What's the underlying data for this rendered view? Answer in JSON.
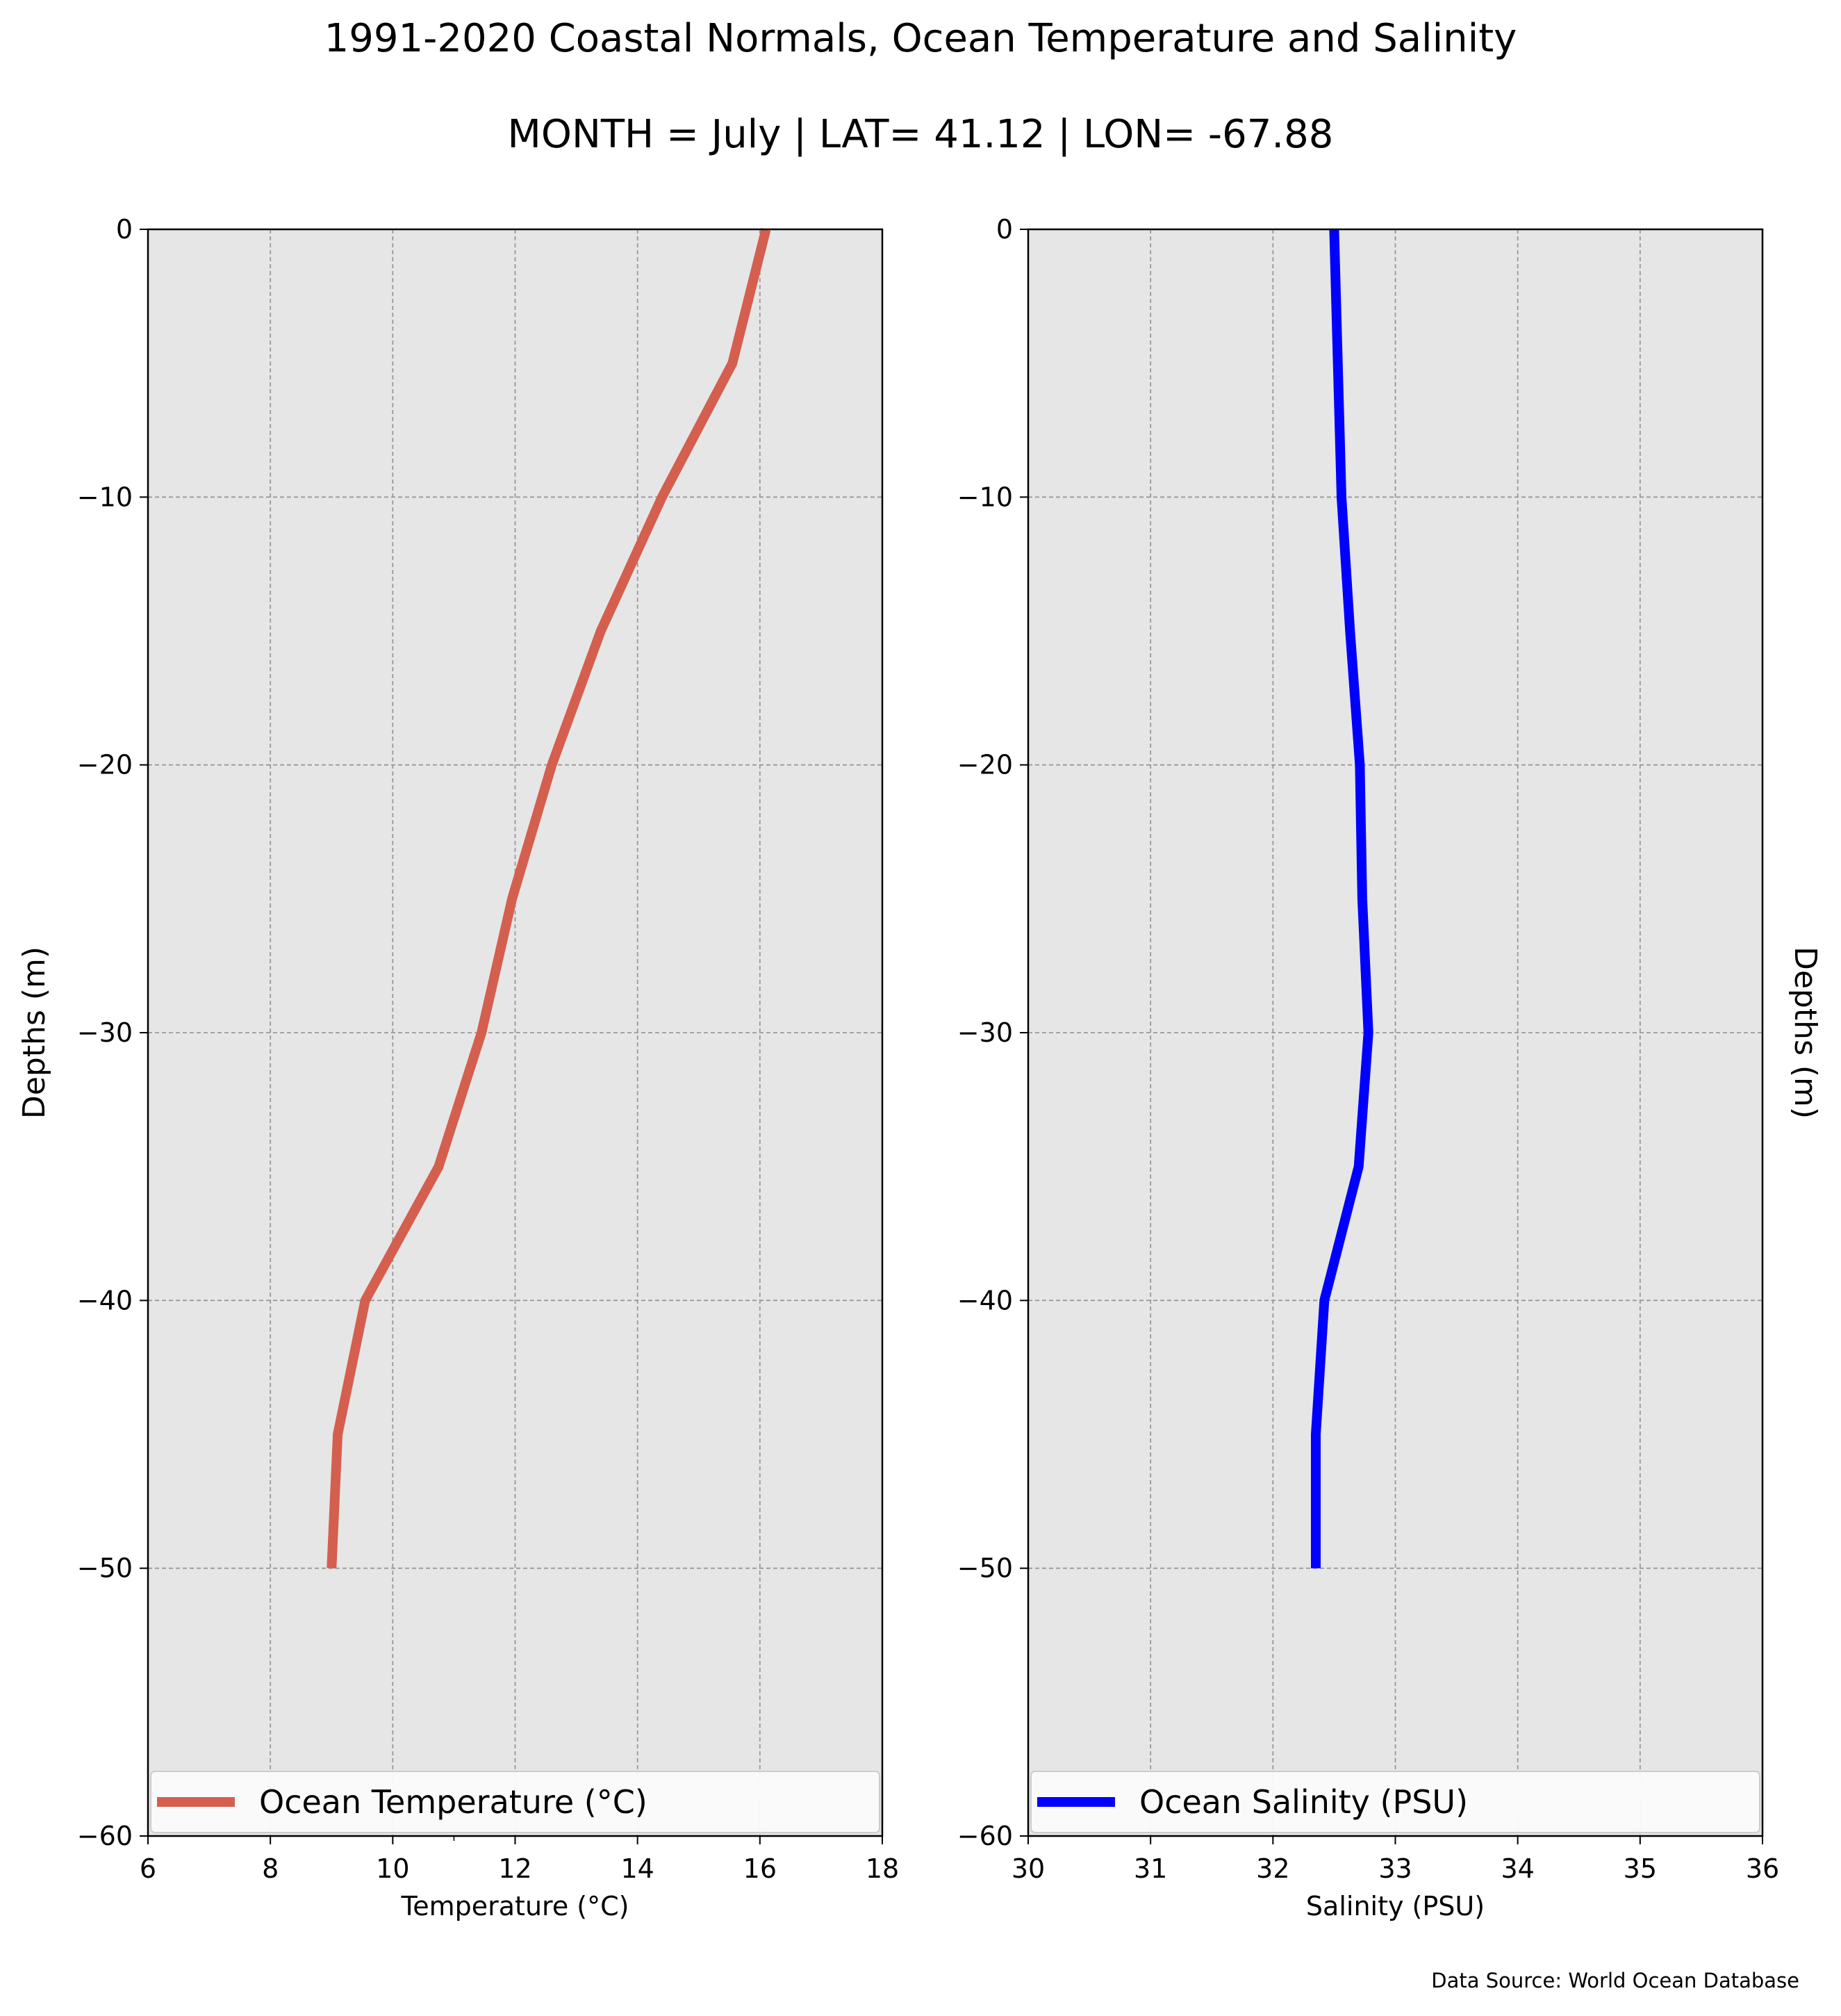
{
  "title": "1991-2020 Coastal Normals, Ocean Temperature and Salinity",
  "subtitle": "MONTH = July | LAT= 41.12 | LON= -67.88",
  "source": "Data Source: World Ocean Database",
  "chart_data": [
    {
      "type": "line",
      "xlabel": "Temperature (°C)",
      "ylabel": "Depths (m)",
      "xlim": [
        6,
        18
      ],
      "ylim": [
        -60,
        0
      ],
      "xticks": [
        "6",
        "8",
        "10",
        "12",
        "14",
        "16",
        "18"
      ],
      "yticks": [
        "0",
        "−10",
        "−20",
        "−30",
        "−40",
        "−50",
        "−60"
      ],
      "grid": true,
      "legend_position": "bottom",
      "series": [
        {
          "name": "Ocean Temperature (°C)",
          "color": "#d45f4f",
          "x": [
            16.1,
            15.55,
            14.4,
            13.4,
            12.6,
            11.95,
            11.45,
            10.75,
            9.55,
            9.1,
            9.0
          ],
          "y": [
            0,
            -5,
            -10,
            -15,
            -20,
            -25,
            -30,
            -35,
            -40,
            -45,
            -50
          ]
        }
      ]
    },
    {
      "type": "line",
      "xlabel": "Salinity (PSU)",
      "ylabel": "Depths (m)",
      "xlim": [
        30,
        36
      ],
      "ylim": [
        -60,
        0
      ],
      "xticks": [
        "30",
        "31",
        "32",
        "33",
        "34",
        "35",
        "36"
      ],
      "yticks": [
        "0",
        "−10",
        "−20",
        "−30",
        "−40",
        "−50",
        "−60"
      ],
      "grid": true,
      "legend_position": "bottom",
      "series": [
        {
          "name": "Ocean Salinity (PSU)",
          "color": "#0000ff",
          "x": [
            32.5,
            32.53,
            32.56,
            32.63,
            32.71,
            32.73,
            32.78,
            32.7,
            32.42,
            32.35,
            32.35
          ],
          "y": [
            0,
            -5,
            -10,
            -15,
            -20,
            -25,
            -30,
            -35,
            -40,
            -45,
            -50
          ]
        }
      ]
    }
  ]
}
